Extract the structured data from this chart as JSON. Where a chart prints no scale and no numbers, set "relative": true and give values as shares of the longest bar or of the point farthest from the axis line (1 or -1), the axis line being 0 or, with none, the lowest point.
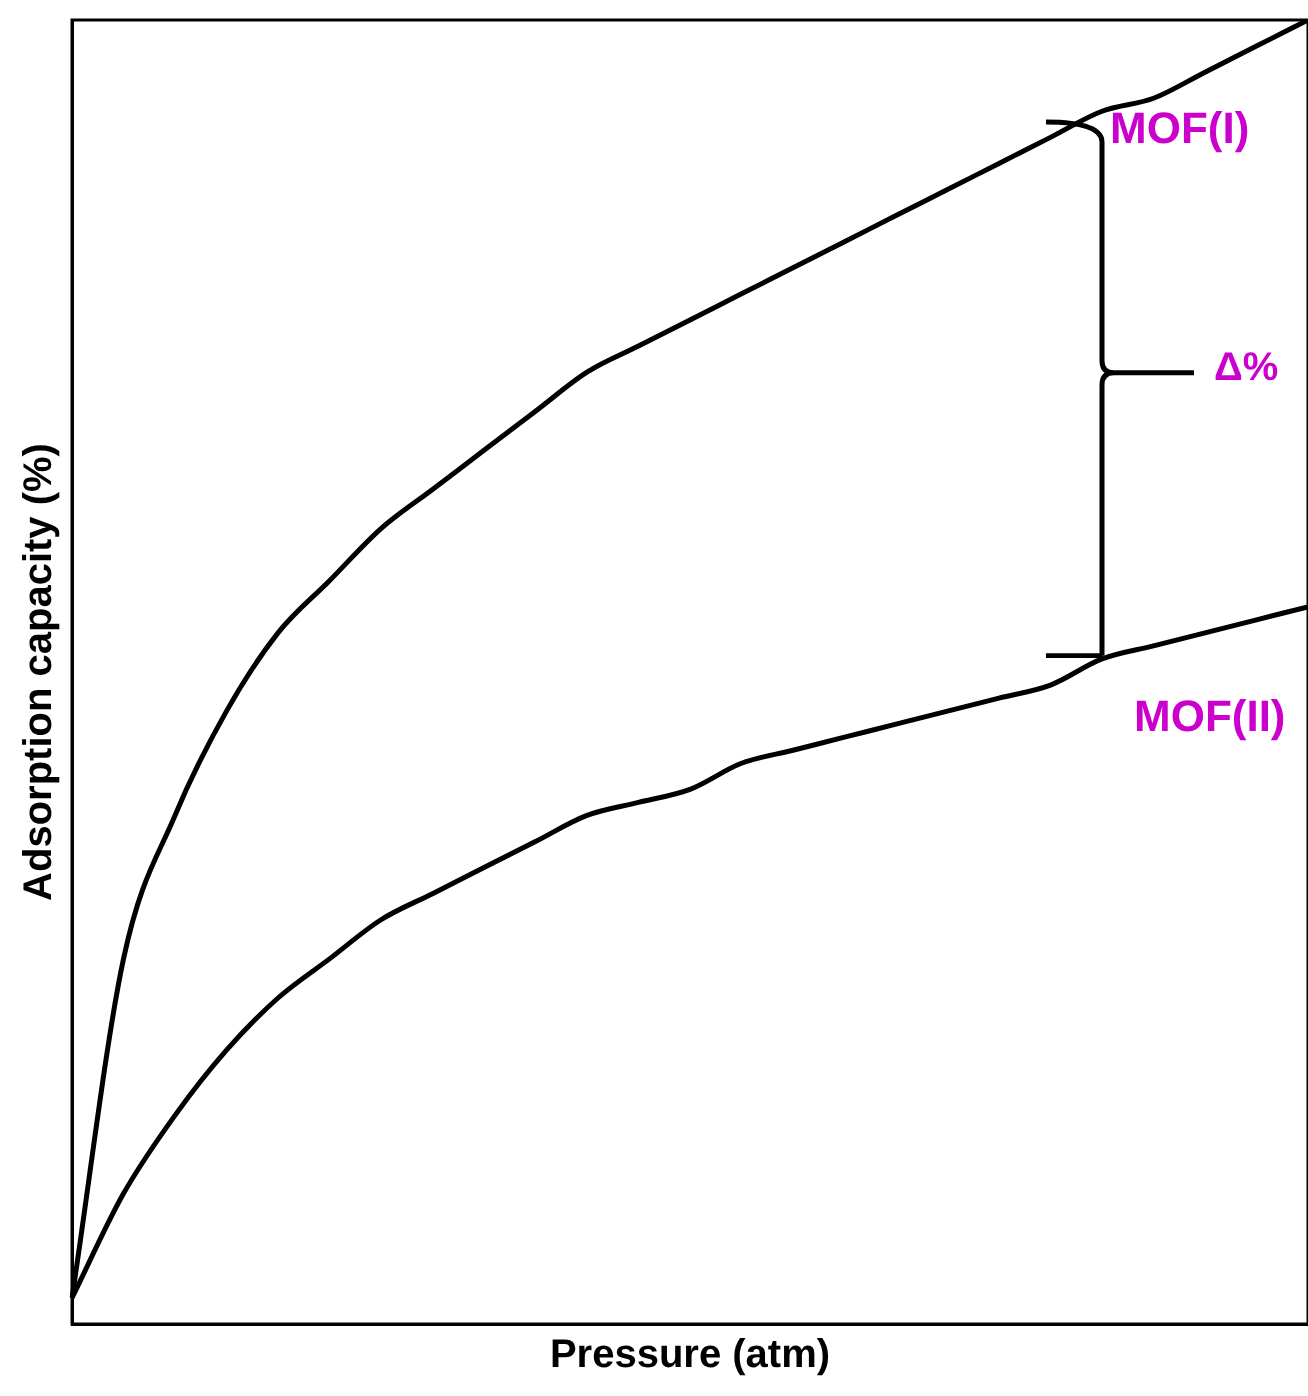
{
  "chart_data": {
    "type": "line",
    "relative": true,
    "xlabel": "Pressure (atm)",
    "ylabel": "Adsorption capacity (%)",
    "categories": [
      null,
      null,
      null,
      null,
      null,
      null,
      null,
      null,
      null,
      null,
      null,
      null,
      null,
      null,
      null,
      null,
      null,
      null,
      null,
      null,
      null,
      null,
      null,
      null,
      null
    ],
    "series": [
      {
        "name": "MOF(I)",
        "color": "#000000",
        "values": [
          0.02,
          0.28,
          0.39,
          0.47,
          0.53,
          0.57,
          0.61,
          0.64,
          0.67,
          0.7,
          0.73,
          0.75,
          0.77,
          0.79,
          0.81,
          0.83,
          0.85,
          0.87,
          0.89,
          0.91,
          0.93,
          0.94,
          0.96,
          0.98,
          1
        ]
      },
      {
        "name": "MOF(II)",
        "color": "#000000",
        "values": [
          0.02,
          0.1,
          0.16,
          0.21,
          0.25,
          0.28,
          0.31,
          0.33,
          0.35,
          0.37,
          0.39,
          0.4,
          0.41,
          0.43,
          0.44,
          0.45,
          0.46,
          0.47,
          0.48,
          0.49,
          0.51,
          0.52,
          0.53,
          0.54,
          0.55
        ]
      }
    ],
    "annotations": [
      "Δ%"
    ],
    "grid": false,
    "legend": false,
    "marker": "none",
    "line_style": "solid"
  }
}
